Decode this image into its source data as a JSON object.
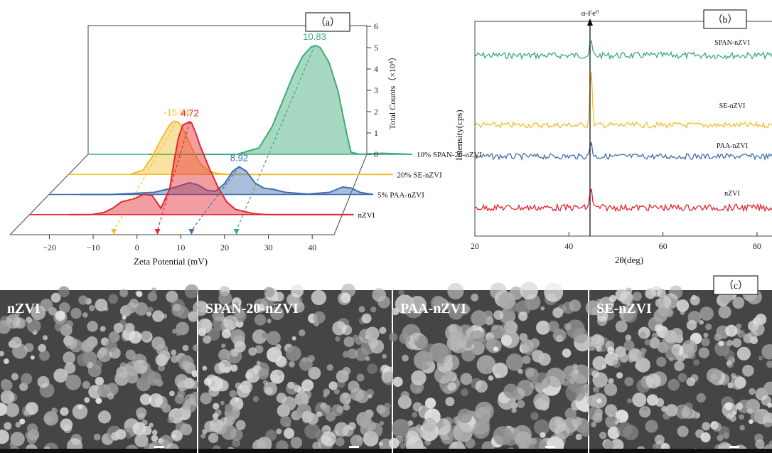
{
  "chart_data": [
    {
      "type": "area",
      "panel_tag": "（a）",
      "xlabel": "Zeta Potential (mV)",
      "ylabel": "Total Counts（×10⁴）",
      "xlim": [
        -29,
        45
      ],
      "x_ticks": [
        -20,
        -10,
        0,
        10,
        20,
        30,
        40
      ],
      "ylim": [
        0,
        6
      ],
      "y_ticks": [
        0,
        1,
        2,
        3,
        4,
        5,
        6
      ],
      "series": [
        {
          "name": "10% SPAN-20-nZVI",
          "color": "#3bab78",
          "peak_x": 22.7,
          "peak_label": "10.83",
          "x": [
            -15,
            -5,
            0,
            5,
            10,
            13,
            16,
            18,
            20,
            22,
            23,
            24,
            26,
            28,
            30,
            31,
            33,
            38,
            45
          ],
          "y": [
            0,
            0,
            0,
            0,
            0.3,
            1.3,
            2.8,
            3.8,
            4.6,
            5.05,
            5.1,
            5.0,
            4.3,
            3.0,
            1.0,
            0.1,
            0,
            0.05,
            0
          ]
        },
        {
          "name": "20% SE-nZVI",
          "color": "#f1be2e",
          "peak_x": -4.3,
          "peak_label": "-15.84",
          "x": [
            -15,
            -12,
            -10,
            -8,
            -6,
            -5,
            -4,
            -3,
            -1,
            1,
            3,
            5,
            7,
            10,
            45
          ],
          "y": [
            0,
            0.2,
            0.8,
            1.6,
            2.3,
            2.5,
            2.45,
            2.2,
            1.3,
            0.5,
            0.15,
            0.05,
            0,
            0,
            0
          ]
        },
        {
          "name": "5% PAA-nZVI",
          "color": "#3f6fb0",
          "peak_x": 14.4,
          "peak_label": "8.92",
          "x": [
            -22,
            -15,
            -10,
            -5,
            -3,
            0,
            3,
            5,
            7,
            9,
            11,
            13,
            14.4,
            16,
            18,
            20,
            22,
            25,
            30,
            35,
            38,
            40,
            42,
            45
          ],
          "y": [
            0,
            0,
            0.05,
            0.1,
            0.2,
            0.35,
            0.55,
            0.45,
            0.2,
            0.15,
            0.5,
            1.1,
            1.3,
            1.1,
            0.55,
            0.3,
            0.25,
            0.1,
            0.02,
            0.1,
            0.35,
            0.3,
            0.1,
            0
          ]
        },
        {
          "name": "nZVI",
          "color": "#e32631",
          "peak_x": 7.6,
          "peak_label": "4.72",
          "x": [
            -20,
            -15,
            -12,
            -10,
            -8,
            -5,
            -3,
            -1,
            1,
            3,
            4,
            5,
            6,
            7,
            7.6,
            8,
            9,
            10,
            12,
            14,
            16,
            18,
            22,
            25,
            45
          ],
          "y": [
            0,
            0,
            0.1,
            0.3,
            0.6,
            0.75,
            0.95,
            0.9,
            0.3,
            1.2,
            2.5,
            3.6,
            4.2,
            4.3,
            4.35,
            4.3,
            3.8,
            3.2,
            2.2,
            1.3,
            0.6,
            0.25,
            0.05,
            0,
            0
          ]
        }
      ]
    },
    {
      "type": "line",
      "panel_tag": "（b）",
      "xlabel": "2θ(deg)",
      "ylabel": "Intensity(cps)",
      "xlim": [
        20,
        85
      ],
      "x_ticks": [
        20,
        40,
        60,
        80
      ],
      "peak_annotation": "α-Fe⁰",
      "peak_position": 44.7,
      "series": [
        {
          "name": "SPAN-nZVI",
          "color": "#3bab78"
        },
        {
          "name": "SE-nZVI",
          "color": "#f1be2e"
        },
        {
          "name": "PAA-nZVI",
          "color": "#3f6fb0"
        },
        {
          "name": "nZVI",
          "color": "#e32631"
        }
      ]
    }
  ],
  "micrographs": {
    "panel_tag": "（c）",
    "labels": [
      "nZVI",
      "SPAN-20-nZVI",
      "PAA-nZVI",
      "SE-nZVI"
    ]
  }
}
